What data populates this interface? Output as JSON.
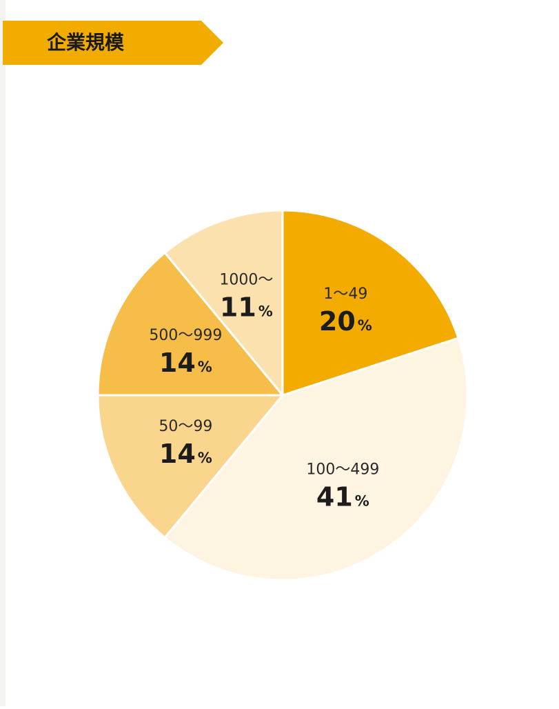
{
  "title": "企業規模",
  "colors": {
    "banner": "#f2ac00",
    "background": "#ffffff"
  },
  "chart_data": {
    "type": "pie",
    "title": "企業規模",
    "unit": "%",
    "start_angle_deg": 0,
    "direction": "clockwise",
    "slices": [
      {
        "label": "1～49",
        "value": 20,
        "color": "#f4ab00"
      },
      {
        "label": "100～499",
        "value": 41,
        "color": "#fdf4e1"
      },
      {
        "label": "50～99",
        "value": 14,
        "color": "#fad58e"
      },
      {
        "label": "500～999",
        "value": 14,
        "color": "#f6bd48"
      },
      {
        "label": "1000～",
        "value": 11,
        "color": "#fbe1ae"
      }
    ]
  }
}
